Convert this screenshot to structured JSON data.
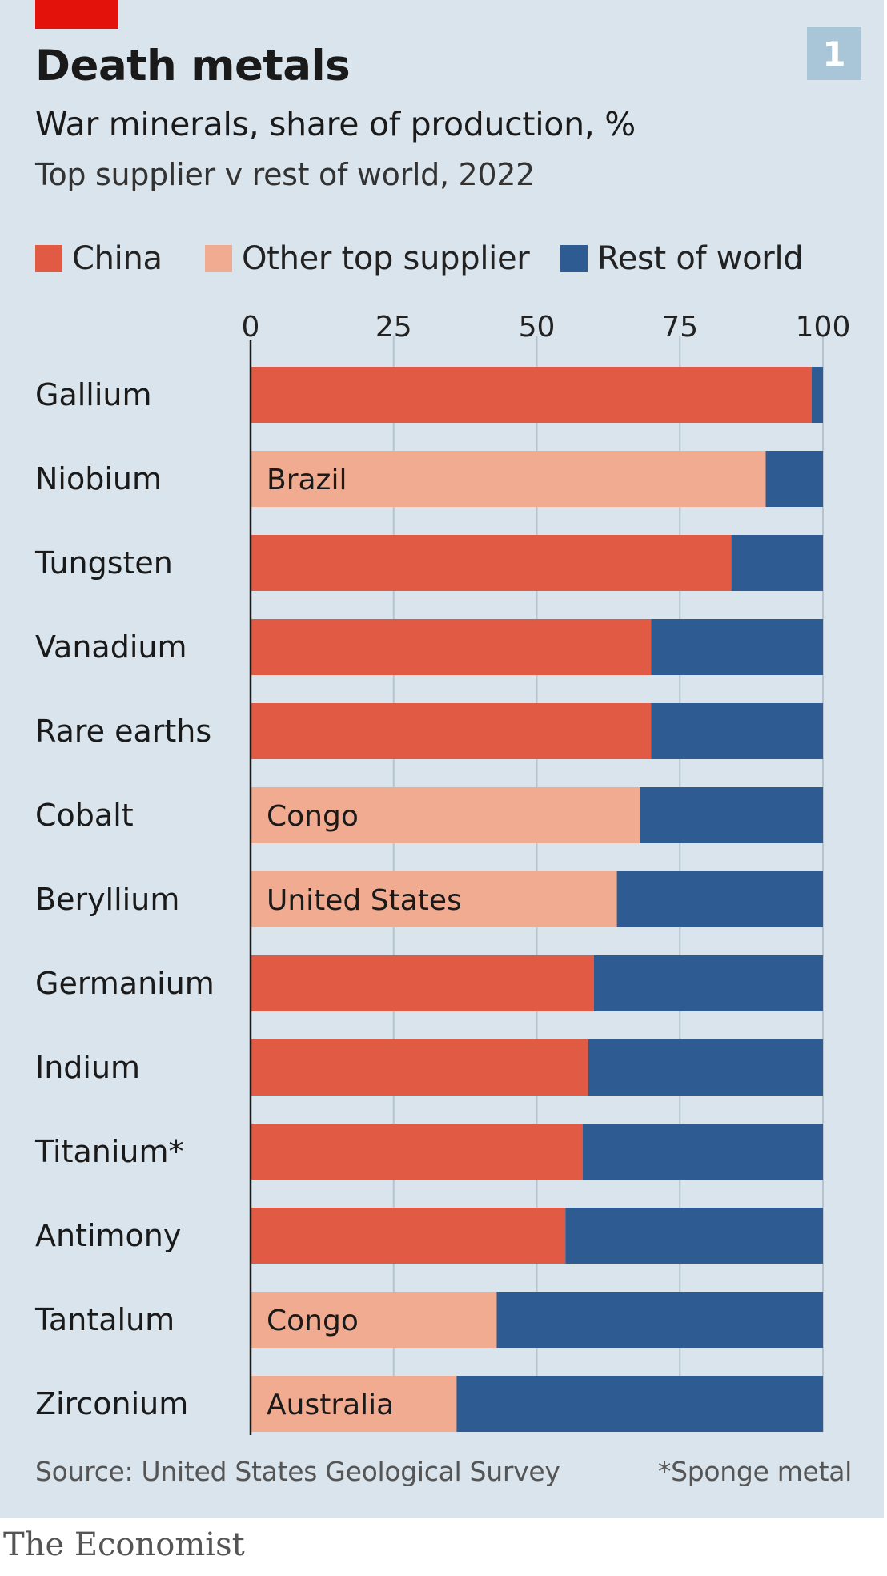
{
  "header": {
    "title": "Death metals",
    "subtitle": "War minerals, share of production, %",
    "subtitle2": "Top supplier v rest of world, 2022",
    "badge": "1"
  },
  "legend": [
    {
      "label": "China",
      "color": "#e05a44"
    },
    {
      "label": "Other top supplier",
      "color": "#f0ab90"
    },
    {
      "label": "Rest of world",
      "color": "#2f5b93"
    }
  ],
  "footer": {
    "source": "Source: United States Geological Survey",
    "footnote": "*Sponge metal",
    "brand": "The Economist"
  },
  "colors": {
    "background": "#d9e4ec",
    "china": "#e05a44",
    "other": "#f0ab90",
    "rest": "#2f5b93",
    "accent": "#e3120b"
  },
  "chart_data": {
    "type": "bar",
    "orientation": "horizontal",
    "stacked": true,
    "xlim": [
      0,
      100
    ],
    "xticks": [
      0,
      25,
      50,
      75,
      100
    ],
    "grid": true,
    "legend_position": "top",
    "categories": [
      "Gallium",
      "Niobium",
      "Tungsten",
      "Vanadium",
      "Rare earths",
      "Cobalt",
      "Beryllium",
      "Germanium",
      "Indium",
      "Titanium*",
      "Antimony",
      "Tantalum",
      "Zirconium"
    ],
    "top_supplier": [
      "China",
      "Brazil",
      "China",
      "China",
      "China",
      "Congo",
      "United States",
      "China",
      "China",
      "China",
      "China",
      "Congo",
      "Australia"
    ],
    "top_supplier_labels": [
      "",
      "Brazil",
      "",
      "",
      "",
      "Congo",
      "United States",
      "",
      "",
      "",
      "",
      "Congo",
      "Australia"
    ],
    "series": [
      {
        "name": "China",
        "values": [
          98,
          0,
          84,
          70,
          70,
          0,
          0,
          60,
          59,
          58,
          55,
          0,
          0
        ]
      },
      {
        "name": "Other top supplier",
        "values": [
          0,
          90,
          0,
          0,
          0,
          68,
          64,
          0,
          0,
          0,
          0,
          43,
          36
        ]
      },
      {
        "name": "Rest of world",
        "values": [
          2,
          10,
          16,
          30,
          30,
          32,
          36,
          40,
          41,
          42,
          45,
          57,
          64
        ]
      }
    ]
  }
}
